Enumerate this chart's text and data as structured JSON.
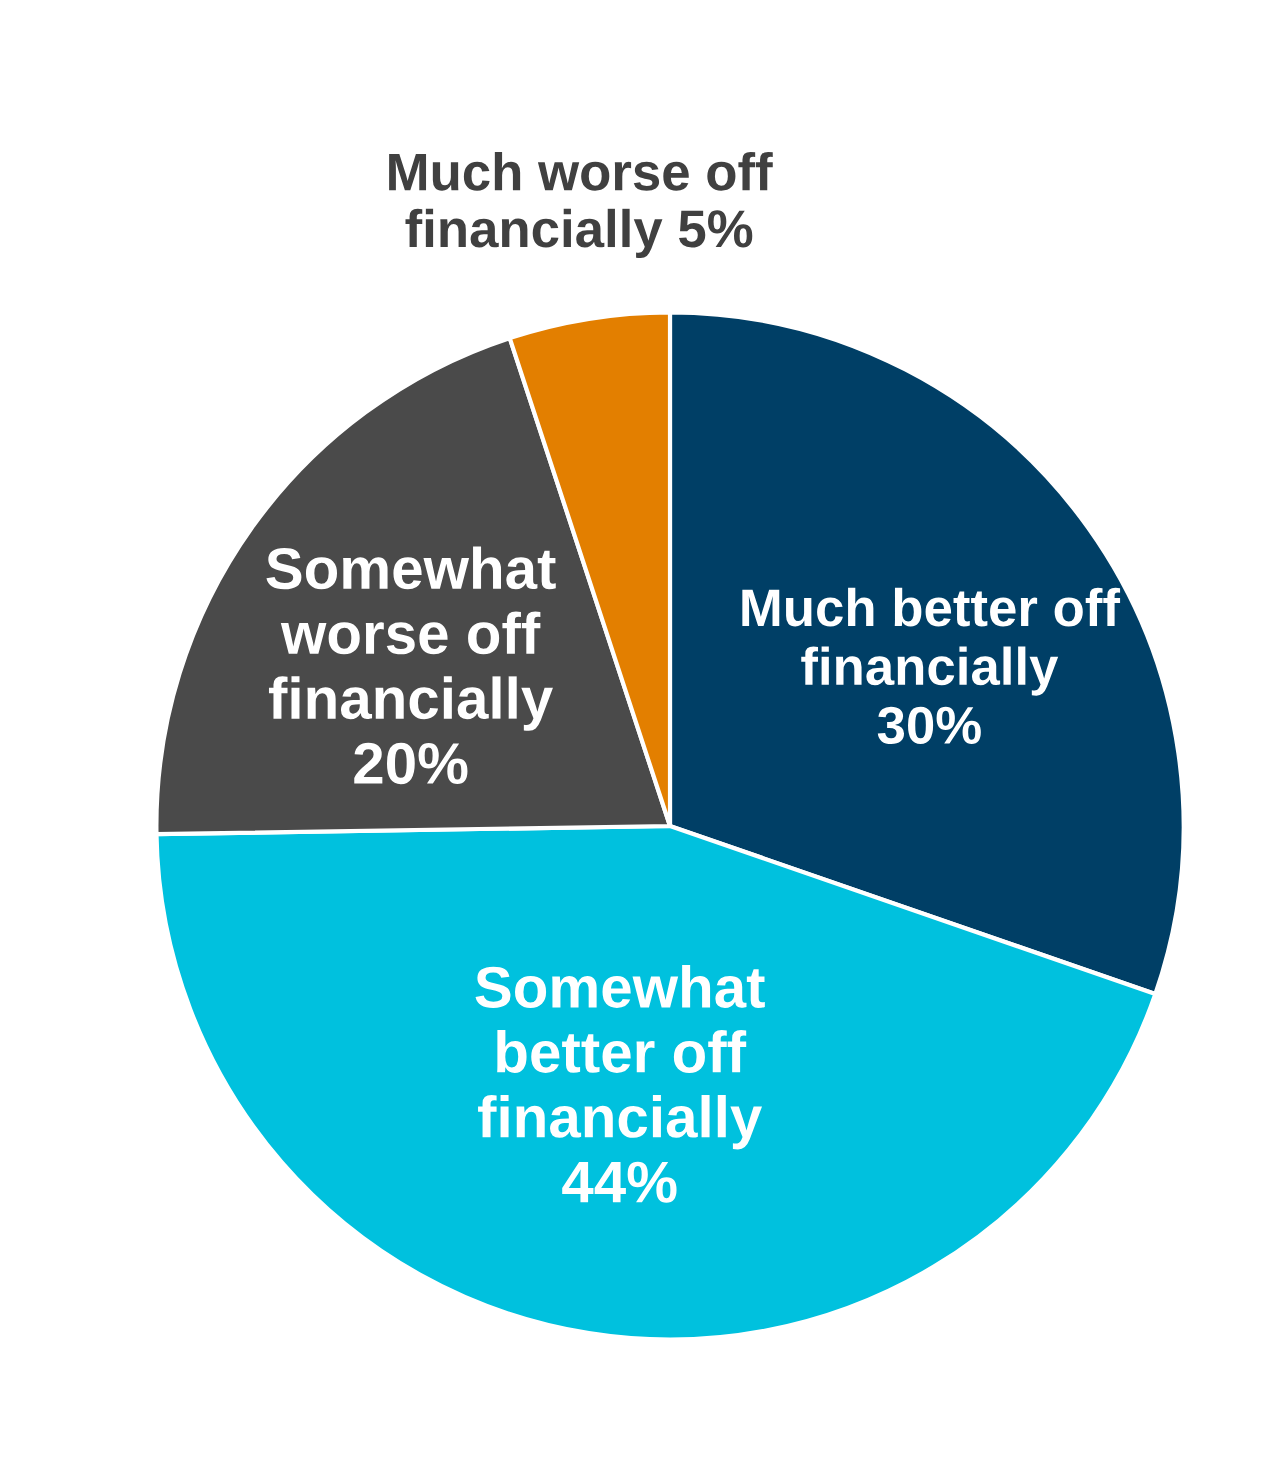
{
  "chart_data": {
    "type": "pie",
    "categories": [
      "Much better off\nfinancially",
      "Somewhat\nbetter off\nfinancially",
      "Somewhat\nworse off\nfinancially",
      "Much worse off\nfinancially"
    ],
    "values": [
      30,
      44,
      20,
      5
    ],
    "value_labels": [
      "30%",
      "44%",
      "20%",
      "5%"
    ],
    "colors": [
      "#003f66",
      "#00c1de",
      "#4a4a4a",
      "#e37f00"
    ]
  }
}
